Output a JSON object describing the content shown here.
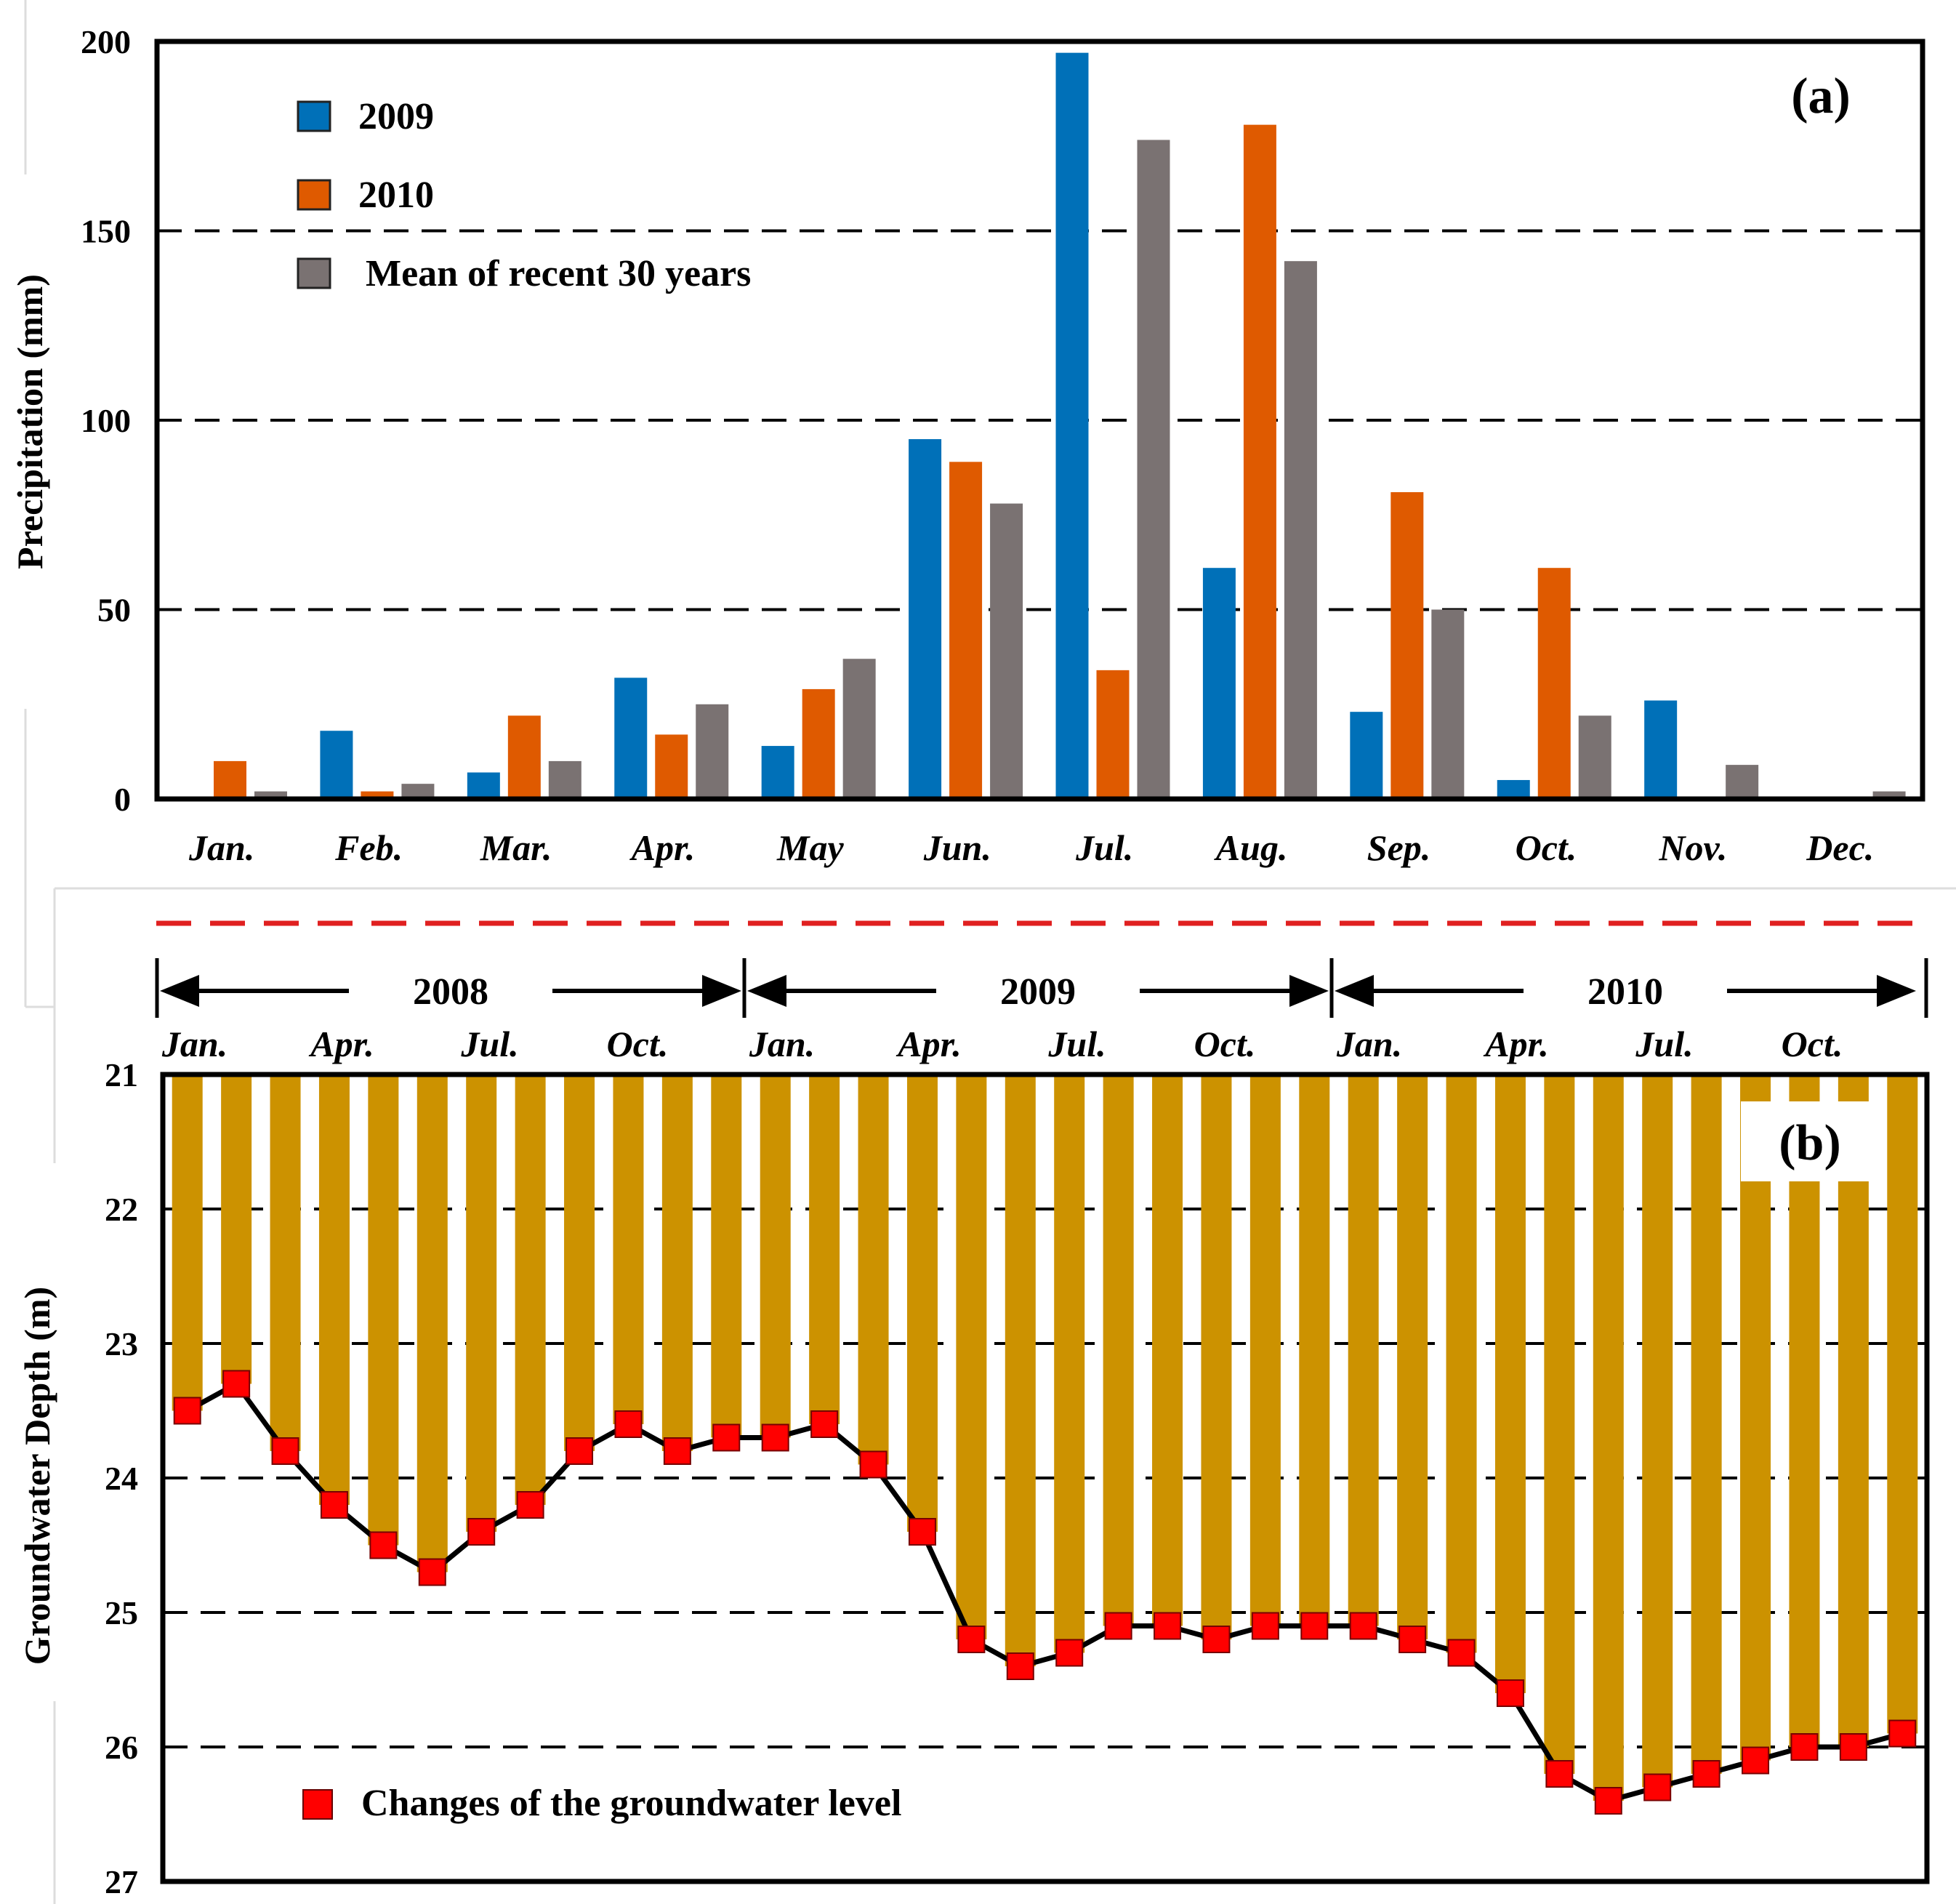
{
  "chart_data": [
    {
      "type": "bar",
      "panel_label": "(a)",
      "ylabel": "Precipitation (mm)",
      "ylim": [
        0,
        200
      ],
      "yticks": [
        "0",
        "50",
        "100",
        "150",
        "200"
      ],
      "grid": "dashed horizontal",
      "legend_position": "top-left",
      "categories": [
        "Jan.",
        "Feb.",
        "Mar.",
        "Apr.",
        "May",
        "Jun.",
        "Jul.",
        "Aug.",
        "Sep.",
        "Oct.",
        "Nov.",
        "Dec."
      ],
      "series": [
        {
          "name": "2009",
          "color": "#0070b8",
          "values": [
            0,
            18,
            7,
            32,
            14,
            95,
            197,
            61,
            23,
            5,
            26,
            0
          ]
        },
        {
          "name": "2010",
          "color": "#df5a00",
          "values": [
            10,
            2,
            22,
            17,
            29,
            89,
            34,
            178,
            81,
            61,
            0,
            0
          ]
        },
        {
          "name": "Mean of recent 30 years",
          "color": "#7a7272",
          "values": [
            2,
            4,
            10,
            25,
            37,
            78,
            174,
            142,
            50,
            22,
            9,
            2
          ]
        }
      ]
    },
    {
      "type": "bar",
      "panel_label": "(b)",
      "ylabel": "Groundwater Depth (m)",
      "ylim": [
        21,
        27
      ],
      "yticks": [
        "21",
        "22",
        "23",
        "24",
        "25",
        "26",
        "27"
      ],
      "grid": "dashed horizontal",
      "bar_color": "#cc9200",
      "marker_color": "#ff0000",
      "legend": "Changes of the groundwater level",
      "years": [
        "2008",
        "2009",
        "2010"
      ],
      "month_ticks": [
        "Jan.",
        "Apr.",
        "Jul.",
        "Oct."
      ],
      "values": [
        23.5,
        23.3,
        23.8,
        24.2,
        24.5,
        24.7,
        24.4,
        24.2,
        23.8,
        23.6,
        23.8,
        23.7,
        23.7,
        23.6,
        23.9,
        24.4,
        25.2,
        25.4,
        25.3,
        25.1,
        25.1,
        25.2,
        25.1,
        25.1,
        25.1,
        25.2,
        25.3,
        25.6,
        26.2,
        26.4,
        26.3,
        26.2,
        26.1,
        26.0,
        26.0,
        25.9
      ]
    }
  ]
}
